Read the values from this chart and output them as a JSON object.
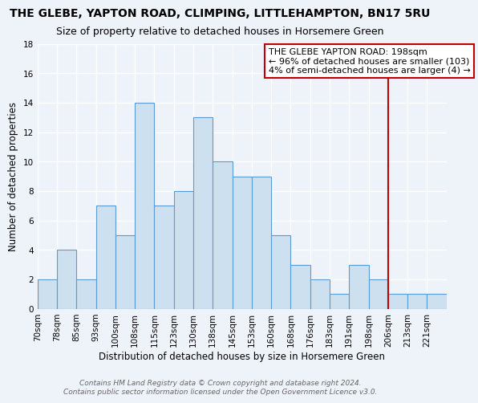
{
  "title": "THE GLEBE, YAPTON ROAD, CLIMPING, LITTLEHAMPTON, BN17 5RU",
  "subtitle": "Size of property relative to detached houses in Horsemere Green",
  "xlabel": "Distribution of detached houses by size in Horsemere Green",
  "ylabel": "Number of detached properties",
  "bin_labels": [
    "70sqm",
    "78sqm",
    "85sqm",
    "93sqm",
    "100sqm",
    "108sqm",
    "115sqm",
    "123sqm",
    "130sqm",
    "138sqm",
    "145sqm",
    "153sqm",
    "160sqm",
    "168sqm",
    "176sqm",
    "183sqm",
    "191sqm",
    "198sqm",
    "206sqm",
    "213sqm",
    "221sqm"
  ],
  "counts": [
    2,
    4,
    2,
    7,
    5,
    14,
    7,
    8,
    13,
    10,
    9,
    9,
    5,
    3,
    2,
    1,
    3,
    2,
    1,
    1,
    1
  ],
  "bar_color": "#cde0f0",
  "bar_edge_color": "#5b9bd5",
  "reference_bin_index": 17,
  "reference_line_color": "#c00000",
  "ylim": [
    0,
    18
  ],
  "yticks": [
    0,
    2,
    4,
    6,
    8,
    10,
    12,
    14,
    16,
    18
  ],
  "annotation_title": "THE GLEBE YAPTON ROAD: 198sqm",
  "annotation_line1": "← 96% of detached houses are smaller (103)",
  "annotation_line2": "4% of semi-detached houses are larger (4) →",
  "annotation_box_color": "#ffffff",
  "annotation_box_edge_color": "#c00000",
  "footnote1": "Contains HM Land Registry data © Crown copyright and database right 2024.",
  "footnote2": "Contains public sector information licensed under the Open Government Licence v3.0.",
  "background_color": "#eef2f9",
  "grid_color": "#ffffff",
  "title_fontsize": 10,
  "subtitle_fontsize": 9,
  "axis_label_fontsize": 8.5,
  "tick_fontsize": 7.5,
  "annotation_fontsize": 8,
  "footnote_fontsize": 6.5
}
